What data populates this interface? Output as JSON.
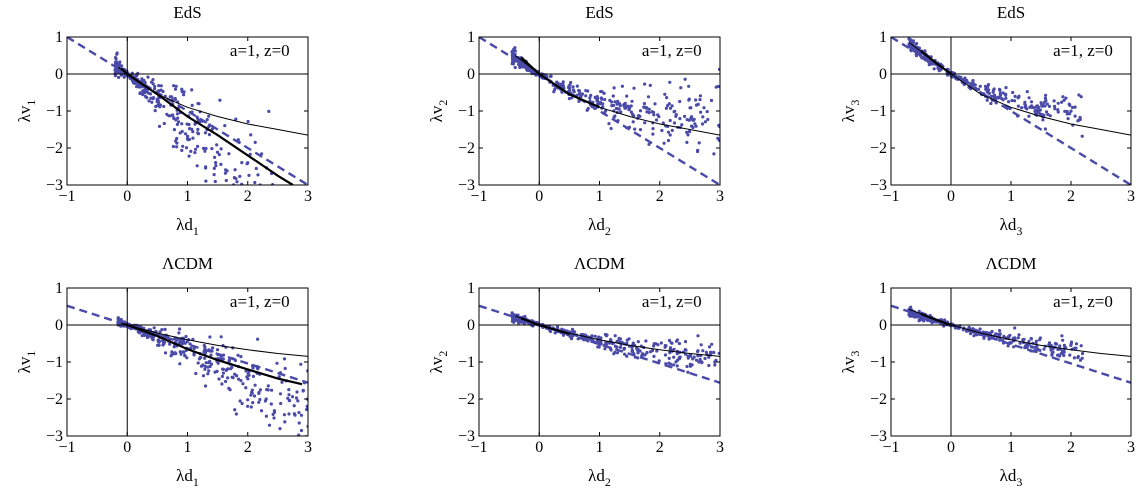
{
  "colors": {
    "points": "#4a4aa8",
    "dashed": "#4a4aa8",
    "axes": "#000000",
    "thin_curve": "#000000"
  },
  "chart_data": [
    {
      "type": "scatter",
      "title": "EdS",
      "xlabel": "λd",
      "xlabel_sub": "1",
      "ylabel": "λv",
      "ylabel_sub": "1",
      "annotation": "a=1, z=0",
      "xlim": [
        -1,
        3
      ],
      "ylim": [
        -3,
        1
      ],
      "xticks": [
        "−1",
        "0",
        "1",
        "2",
        "3"
      ],
      "yticks": [
        "1",
        "0",
        "−1",
        "−2",
        "−3"
      ],
      "dashed_line": {
        "slope": -1,
        "intercept": 0
      },
      "thin_curve": {
        "x": [
          -0.15,
          0,
          0.5,
          1,
          1.5,
          2,
          2.5,
          3
        ],
        "y": [
          0.18,
          0,
          -0.55,
          -0.9,
          -1.15,
          -1.35,
          -1.5,
          -1.65
        ]
      },
      "thick_curve": {
        "x": [
          -0.1,
          0,
          0.5,
          1,
          1.5,
          2,
          2.5,
          2.75
        ],
        "y": [
          0.15,
          0,
          -0.55,
          -1.15,
          -1.65,
          -2.2,
          -2.75,
          -3.0
        ]
      },
      "scatter_model": {
        "xmin": -0.2,
        "xmax": 3.0,
        "n": 420,
        "center": [
          0.0,
          -1.05,
          -0.35
        ],
        "spread": [
          0.03,
          0.5
        ],
        "seed": 11
      }
    },
    {
      "type": "scatter",
      "title": "EdS",
      "xlabel": "λd",
      "xlabel_sub": "2",
      "ylabel": "λv",
      "ylabel_sub": "2",
      "annotation": "a=1, z=0",
      "xlim": [
        -1,
        3
      ],
      "ylim": [
        -3,
        1
      ],
      "xticks": [
        "−1",
        "0",
        "1",
        "2",
        "3"
      ],
      "yticks": [
        "1",
        "0",
        "−1",
        "−2",
        "−3"
      ],
      "dashed_line": {
        "slope": -1,
        "intercept": 0
      },
      "thin_curve": {
        "x": [
          -0.4,
          0,
          0.5,
          1,
          1.5,
          2,
          2.5,
          3
        ],
        "y": [
          0.5,
          0,
          -0.55,
          -0.9,
          -1.15,
          -1.35,
          -1.5,
          -1.65
        ]
      },
      "thick_curve": {
        "x": [
          -0.3,
          0,
          0.5,
          1
        ],
        "y": [
          0.45,
          0,
          -0.55,
          -0.9
        ]
      },
      "scatter_model": {
        "xmin": -0.45,
        "xmax": 3.0,
        "n": 380,
        "center": [
          0.0,
          -1.0,
          0.22
        ],
        "spread": [
          0.03,
          0.16
        ],
        "seed": 23
      }
    },
    {
      "type": "scatter",
      "title": "EdS",
      "xlabel": "λd",
      "xlabel_sub": "3",
      "ylabel": "λv",
      "ylabel_sub": "3",
      "annotation": "a=1, z=0",
      "xlim": [
        -1,
        3
      ],
      "ylim": [
        -3,
        1
      ],
      "xticks": [
        "−1",
        "0",
        "1",
        "2",
        "3"
      ],
      "yticks": [
        "1",
        "0",
        "−1",
        "−2",
        "−3"
      ],
      "dashed_line": {
        "slope": -1,
        "intercept": 0
      },
      "thin_curve": {
        "x": [
          -0.7,
          -0.4,
          0,
          0.5,
          1,
          1.5,
          2,
          2.5,
          3
        ],
        "y": [
          0.85,
          0.5,
          0,
          -0.55,
          -0.9,
          -1.15,
          -1.35,
          -1.5,
          -1.65
        ]
      },
      "thick_curve": {
        "x": [
          -0.5,
          -0.25,
          0
        ],
        "y": [
          0.62,
          0.3,
          0
        ]
      },
      "scatter_model": {
        "xmin": -0.7,
        "xmax": 2.2,
        "n": 320,
        "center": [
          0.0,
          -1.0,
          0.25
        ],
        "spread": [
          0.03,
          0.12
        ],
        "seed": 37
      }
    },
    {
      "type": "scatter",
      "title": "ΛCDM",
      "xlabel": "λd",
      "xlabel_sub": "1",
      "ylabel": "λv",
      "ylabel_sub": "1",
      "annotation": "a=1, z=0",
      "xlim": [
        -1,
        3
      ],
      "ylim": [
        -3,
        1
      ],
      "xticks": [
        "−1",
        "0",
        "1",
        "2",
        "3"
      ],
      "yticks": [
        "1",
        "0",
        "−1",
        "−2",
        "−3"
      ],
      "dashed_line": {
        "slope": -0.52,
        "intercept": 0
      },
      "thin_curve": {
        "x": [
          -0.1,
          0,
          0.5,
          1,
          1.5,
          2,
          2.5,
          3
        ],
        "y": [
          0.05,
          0,
          -0.22,
          -0.4,
          -0.55,
          -0.67,
          -0.77,
          -0.85
        ]
      },
      "thick_curve": {
        "x": [
          -0.05,
          0,
          0.5,
          1,
          1.5,
          2,
          2.5,
          2.9
        ],
        "y": [
          0.02,
          0,
          -0.3,
          -0.65,
          -0.95,
          -1.2,
          -1.45,
          -1.6
        ]
      },
      "scatter_model": {
        "xmin": -0.15,
        "xmax": 3.0,
        "n": 420,
        "center": [
          0.0,
          -0.62,
          -0.06
        ],
        "spread": [
          0.02,
          0.2
        ],
        "seed": 53
      }
    },
    {
      "type": "scatter",
      "title": "ΛCDM",
      "xlabel": "λd",
      "xlabel_sub": "2",
      "ylabel": "λv",
      "ylabel_sub": "2",
      "annotation": "a=1, z=0",
      "xlim": [
        -1,
        3
      ],
      "ylim": [
        -3,
        1
      ],
      "xticks": [
        "−1",
        "0",
        "1",
        "2",
        "3"
      ],
      "yticks": [
        "1",
        "0",
        "−1",
        "−2",
        "−3"
      ],
      "dashed_line": {
        "slope": -0.52,
        "intercept": 0
      },
      "thin_curve": {
        "x": [
          -0.4,
          0,
          0.5,
          1,
          1.5,
          2,
          2.5,
          3
        ],
        "y": [
          0.25,
          0,
          -0.22,
          -0.4,
          -0.55,
          -0.67,
          -0.77,
          -0.85
        ]
      },
      "thick_curve": {
        "x": [
          -0.3,
          0,
          0.5
        ],
        "y": [
          0.18,
          0,
          -0.24
        ]
      },
      "scatter_model": {
        "xmin": -0.45,
        "xmax": 3.0,
        "n": 380,
        "center": [
          0.0,
          -0.48,
          0.06
        ],
        "spread": [
          0.02,
          0.08
        ],
        "seed": 71
      }
    },
    {
      "type": "scatter",
      "title": "ΛCDM",
      "xlabel": "λd",
      "xlabel_sub": "3",
      "ylabel": "λv",
      "ylabel_sub": "3",
      "annotation": "a=1, z=0",
      "xlim": [
        -1,
        3
      ],
      "ylim": [
        -3,
        1
      ],
      "xticks": [
        "−1",
        "0",
        "1",
        "2",
        "3"
      ],
      "yticks": [
        "1",
        "0",
        "−1",
        "−2",
        "−3"
      ],
      "dashed_line": {
        "slope": -0.52,
        "intercept": 0
      },
      "thin_curve": {
        "x": [
          -0.7,
          -0.4,
          0,
          0.5,
          1,
          1.5,
          2,
          2.5,
          3
        ],
        "y": [
          0.42,
          0.25,
          0,
          -0.22,
          -0.4,
          -0.55,
          -0.67,
          -0.77,
          -0.85
        ]
      },
      "thick_curve": {
        "x": [
          -0.5,
          -0.25,
          0
        ],
        "y": [
          0.3,
          0.14,
          0
        ]
      },
      "scatter_model": {
        "xmin": -0.7,
        "xmax": 2.2,
        "n": 320,
        "center": [
          0.0,
          -0.46,
          0.05
        ],
        "spread": [
          0.02,
          0.07
        ],
        "seed": 89
      }
    }
  ]
}
